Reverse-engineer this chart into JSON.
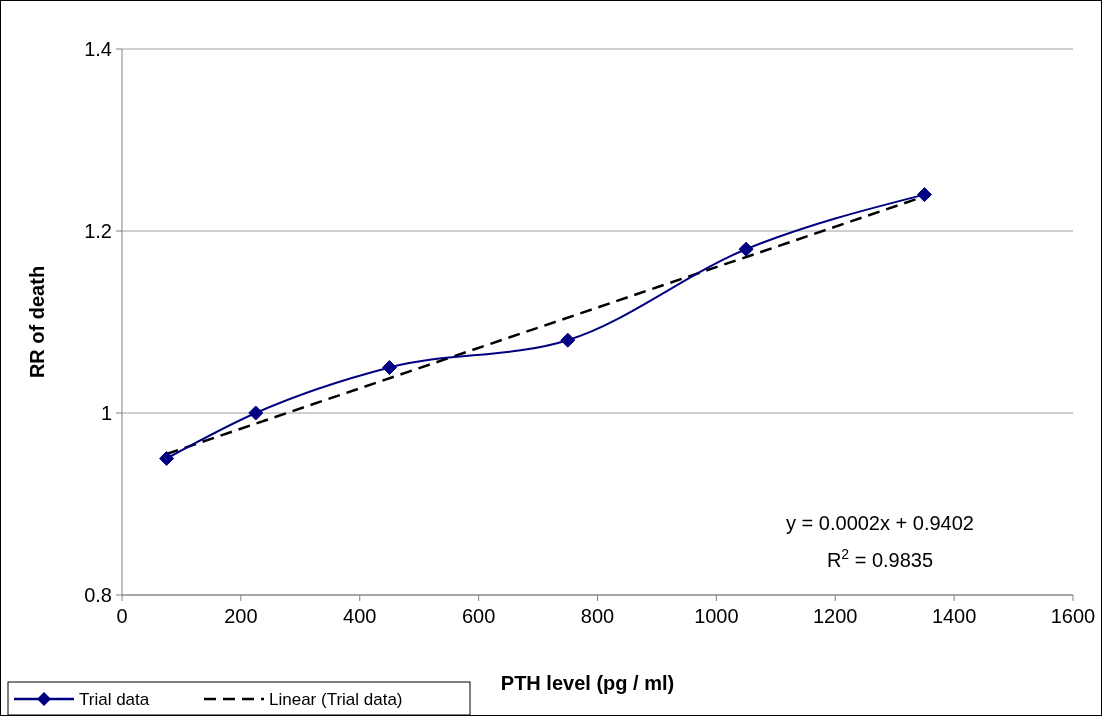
{
  "chart_data": {
    "type": "line",
    "xlabel": "PTH level (pg / ml)",
    "ylabel": "RR of death",
    "xlim": [
      0,
      1600
    ],
    "xticks": [
      0,
      200,
      400,
      600,
      800,
      1000,
      1200,
      1400,
      1600
    ],
    "ylim": [
      0.8,
      1.4
    ],
    "yticks": [
      0.8,
      1,
      1.2,
      1.4
    ],
    "grid": "y",
    "legend": "bottom left",
    "series": [
      {
        "name": "Trial data",
        "color": "#000080",
        "x": [
          75,
          225,
          450,
          750,
          1050,
          1350
        ],
        "values": [
          0.95,
          1.0,
          1.05,
          1.08,
          1.18,
          1.24
        ],
        "marker": "diamond",
        "line_style": "solid"
      },
      {
        "name": "Linear (Trial data)",
        "color": "#000000",
        "x": [
          75,
          1350
        ],
        "values": [
          0.955,
          1.238
        ],
        "marker": "none",
        "line_style": "dashed"
      }
    ],
    "annotations": [
      "y = 0.0002x + 0.9402",
      "R$^{2}$ = 0.9835"
    ]
  }
}
